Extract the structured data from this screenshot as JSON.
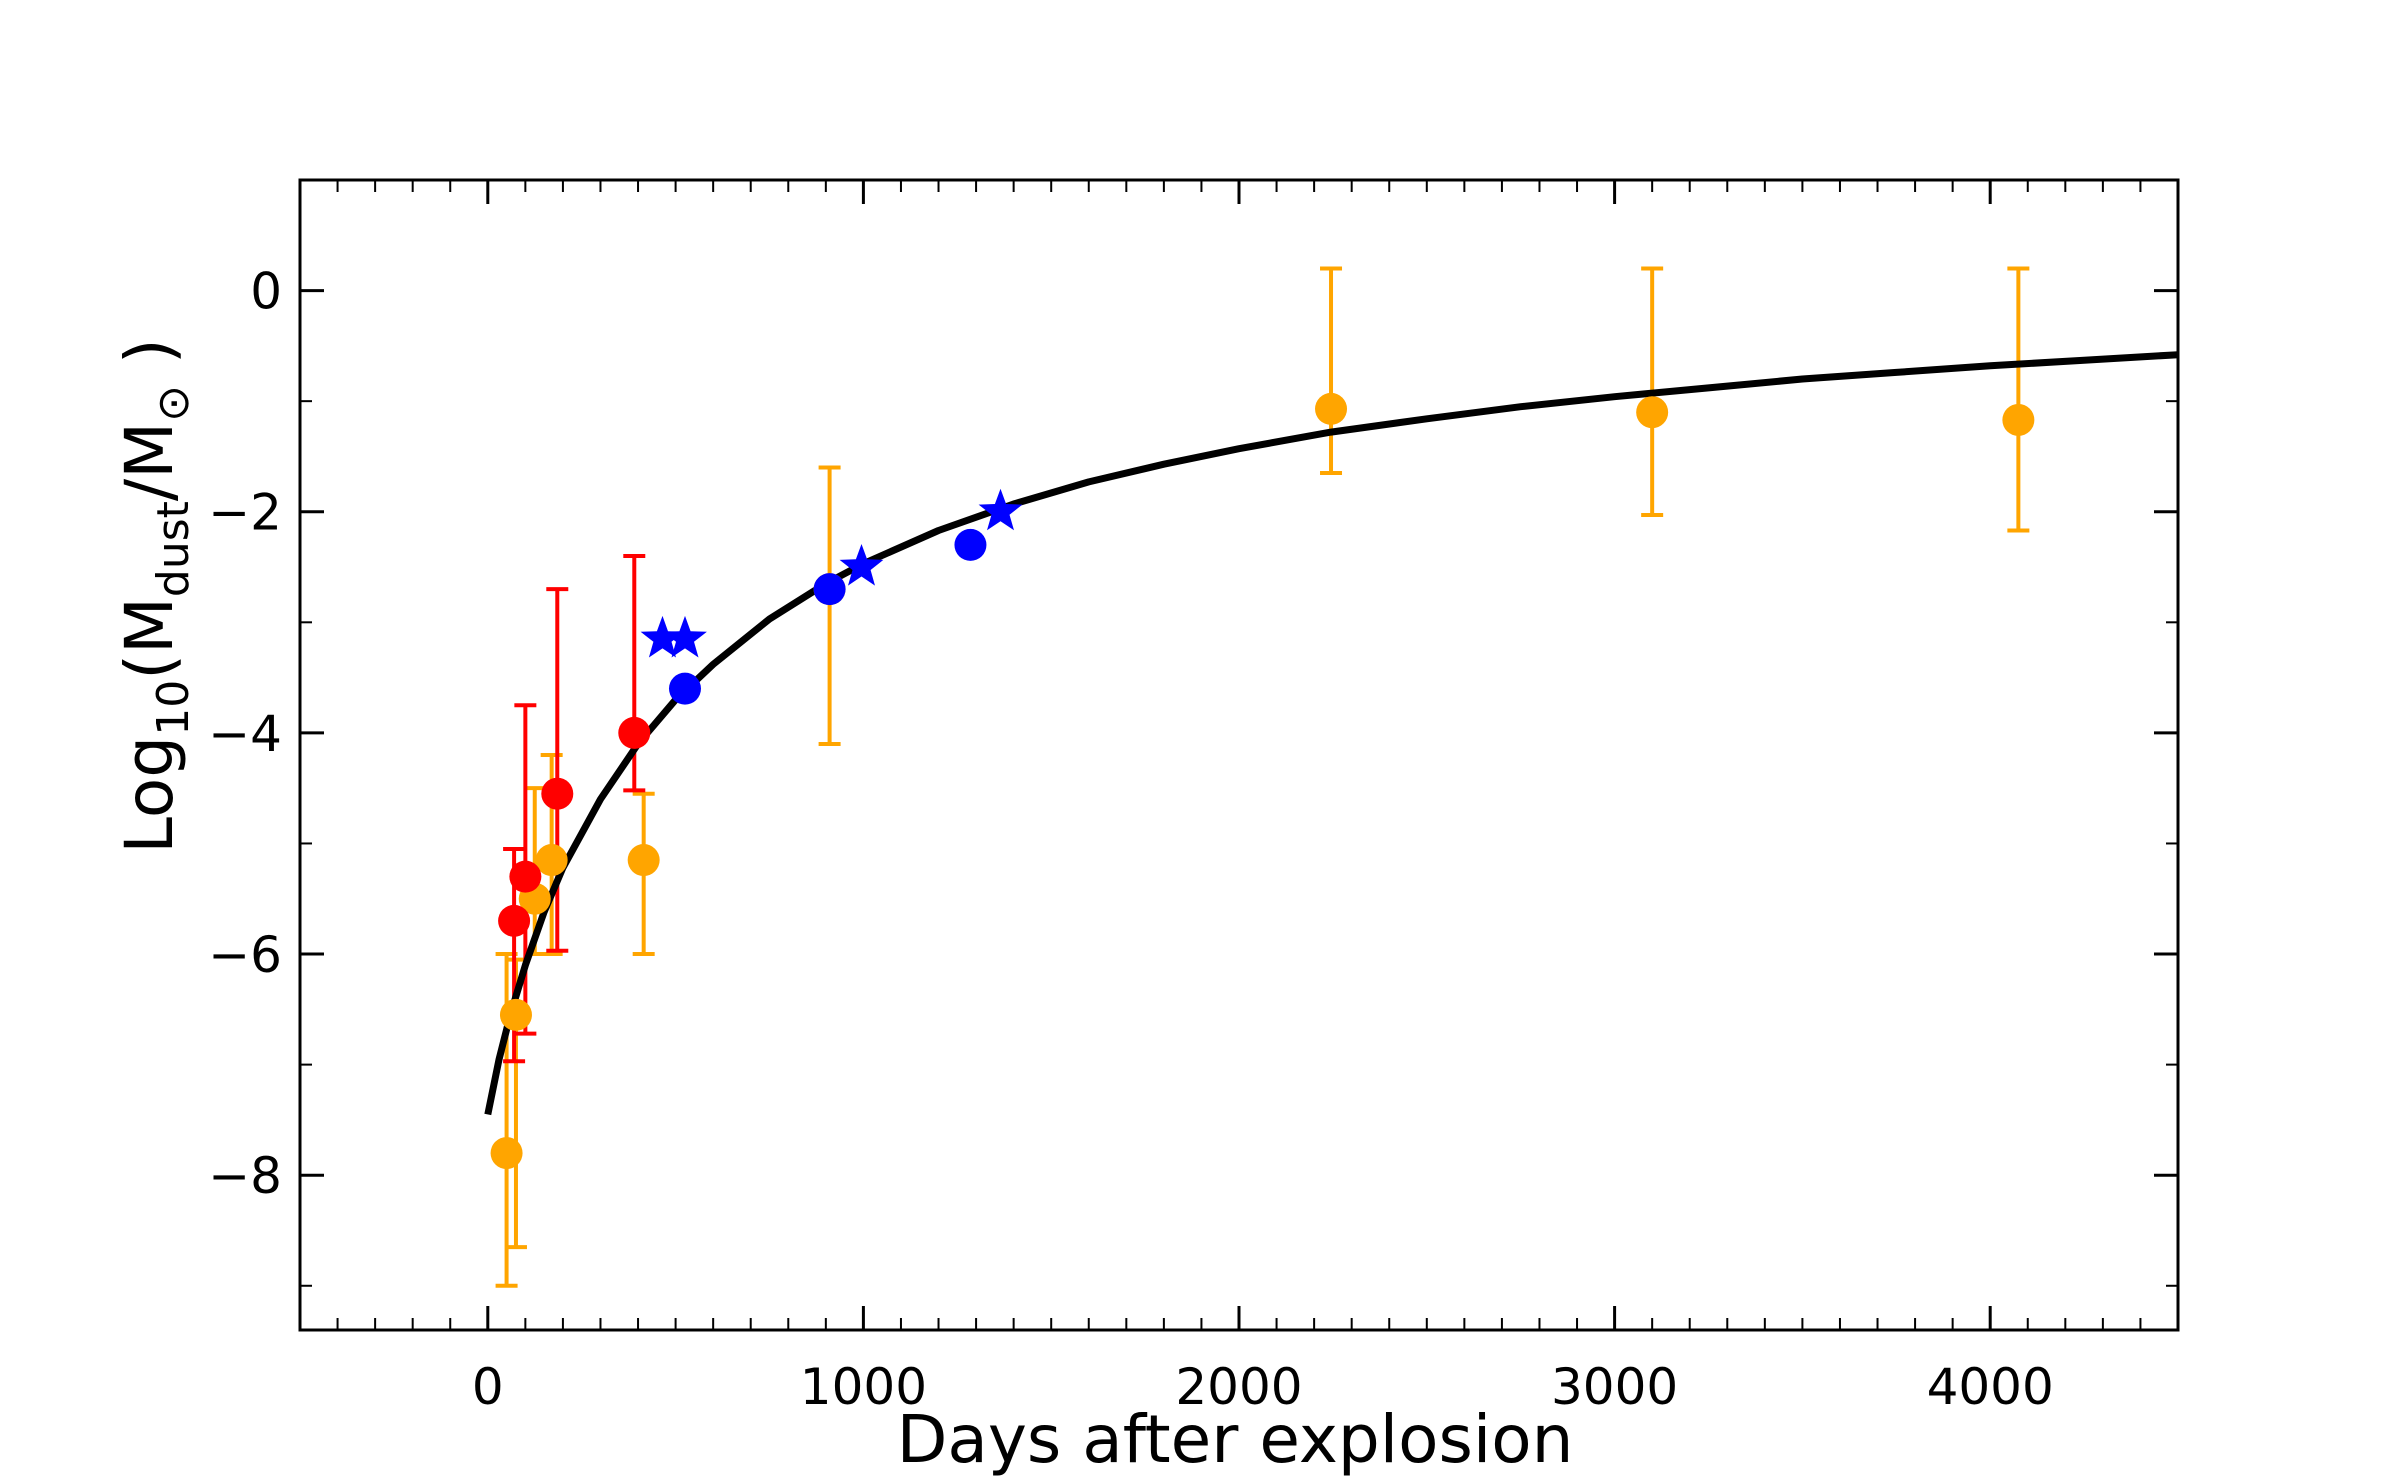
{
  "chart_data": {
    "type": "scatter",
    "title": "",
    "xlabel": "Days after explosion",
    "ylabel": {
      "prefix": "Log",
      "prefix_sub": "10",
      "open": "(M",
      "sub1": "dust",
      "mid": "/M",
      "sub2": "⊙",
      "close": " )"
    },
    "xlim": [
      -500,
      4500
    ],
    "ylim": [
      -9.4,
      1.0
    ],
    "xticks": [
      0,
      1000,
      2000,
      3000,
      4000
    ],
    "xtick_labels": [
      "0",
      "1000",
      "2000",
      "3000",
      "4000"
    ],
    "yticks": [
      0,
      -2,
      -4,
      -6,
      -8
    ],
    "ytick_labels": [
      "0",
      "−2",
      "−4",
      "−6",
      "−8"
    ],
    "grid": false,
    "legend": "none",
    "series": [
      {
        "color": "#FFA500",
        "marker": "circle",
        "points": [
          {
            "x": 50,
            "y": -7.8,
            "ylo": -9.0,
            "yhi": -6.0
          },
          {
            "x": 75,
            "y": -6.55,
            "ylo": -8.65,
            "yhi": -6.05
          },
          {
            "x": 125,
            "y": -5.5,
            "ylo": -6.0,
            "yhi": -4.5
          },
          {
            "x": 170,
            "y": -5.15,
            "ylo": -6.0,
            "yhi": -4.2
          },
          {
            "x": 415,
            "y": -5.15,
            "ylo": -6.0,
            "yhi": -4.55
          },
          {
            "x": 910,
            "y": -2.7,
            "ylo": -4.1,
            "yhi": -1.6
          },
          {
            "x": 2245,
            "y": -1.07,
            "ylo": -1.65,
            "yhi": 0.2
          },
          {
            "x": 3100,
            "y": -1.1,
            "ylo": -2.03,
            "yhi": 0.2
          },
          {
            "x": 4075,
            "y": -1.17,
            "ylo": -2.17,
            "yhi": 0.2
          }
        ]
      },
      {
        "color": "#FF0000",
        "marker": "circle",
        "points": [
          {
            "x": 70,
            "y": -5.7,
            "ylo": -6.97,
            "yhi": -5.05
          },
          {
            "x": 100,
            "y": -5.3,
            "ylo": -6.72,
            "yhi": -3.75
          },
          {
            "x": 185,
            "y": -4.55,
            "ylo": -5.97,
            "yhi": -2.7
          },
          {
            "x": 390,
            "y": -4.0,
            "ylo": -4.52,
            "yhi": -2.4
          }
        ]
      },
      {
        "color": "#0000FF",
        "marker": "circle",
        "points": [
          {
            "x": 525,
            "y": -3.6
          },
          {
            "x": 910,
            "y": -2.7
          },
          {
            "x": 1285,
            "y": -2.3
          }
        ]
      },
      {
        "color": "#0000FF",
        "marker": "star",
        "points": [
          {
            "x": 465,
            "y": -3.15
          },
          {
            "x": 525,
            "y": -3.15
          },
          {
            "x": 995,
            "y": -2.5
          },
          {
            "x": 1365,
            "y": -2.0
          }
        ]
      }
    ],
    "fit_curve": {
      "color": "#000000",
      "points": [
        [
          0,
          -7.45
        ],
        [
          30,
          -6.95
        ],
        [
          60,
          -6.55
        ],
        [
          100,
          -6.1
        ],
        [
          150,
          -5.62
        ],
        [
          200,
          -5.22
        ],
        [
          300,
          -4.6
        ],
        [
          400,
          -4.1
        ],
        [
          500,
          -3.7
        ],
        [
          600,
          -3.38
        ],
        [
          750,
          -2.97
        ],
        [
          900,
          -2.65
        ],
        [
          1000,
          -2.47
        ],
        [
          1200,
          -2.17
        ],
        [
          1400,
          -1.93
        ],
        [
          1600,
          -1.73
        ],
        [
          1800,
          -1.57
        ],
        [
          2000,
          -1.43
        ],
        [
          2245,
          -1.28
        ],
        [
          2500,
          -1.16
        ],
        [
          2750,
          -1.05
        ],
        [
          3000,
          -0.96
        ],
        [
          3250,
          -0.88
        ],
        [
          3500,
          -0.8
        ],
        [
          3750,
          -0.74
        ],
        [
          4000,
          -0.68
        ],
        [
          4250,
          -0.63
        ],
        [
          4500,
          -0.58
        ]
      ]
    }
  }
}
